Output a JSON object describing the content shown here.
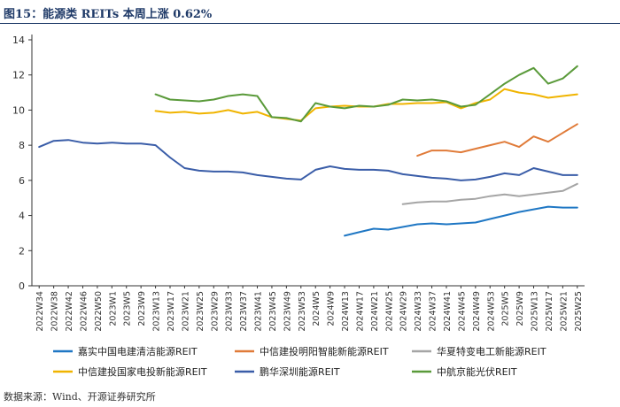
{
  "title": "图15：能源类 REITs 本周上涨 0.62%",
  "source": "数据来源：Wind、开源证券研究所",
  "chart_data": {
    "type": "line",
    "ylim": [
      0,
      14
    ],
    "yticks": [
      0,
      2,
      4,
      6,
      8,
      10,
      12,
      14
    ],
    "grid": false,
    "legend_position": "bottom",
    "x": [
      "2022W34",
      "2022W38",
      "2022W42",
      "2022W46",
      "2022W50",
      "2023W1",
      "2023W5",
      "2023W9",
      "2023W13",
      "2023W17",
      "2023W21",
      "2023W25",
      "2023W29",
      "2023W33",
      "2023W37",
      "2023W41",
      "2023W45",
      "2023W49",
      "2023W53",
      "2024W5",
      "2024W9",
      "2024W13",
      "2024W17",
      "2024W21",
      "2024W25",
      "2024W29",
      "2024W33",
      "2024W37",
      "2024W41",
      "2024W45",
      "2024W49",
      "2024W53",
      "2025W5",
      "2025W9",
      "2025W13",
      "2025W17",
      "2025W21",
      "2025W25"
    ],
    "series": [
      {
        "name": "嘉实中国电建清洁能源REIT",
        "color": "#1f77c4",
        "values": [
          null,
          null,
          null,
          null,
          null,
          null,
          null,
          null,
          null,
          null,
          null,
          null,
          null,
          null,
          null,
          null,
          null,
          null,
          null,
          null,
          null,
          2.85,
          3.05,
          3.25,
          3.2,
          3.35,
          3.5,
          3.55,
          3.5,
          3.55,
          3.6,
          3.8,
          4.0,
          4.2,
          4.35,
          4.5,
          4.45,
          4.45
        ]
      },
      {
        "name": "中信建投明阳智能新能源REIT",
        "color": "#e07b39",
        "values": [
          null,
          null,
          null,
          null,
          null,
          null,
          null,
          null,
          null,
          null,
          null,
          null,
          null,
          null,
          null,
          null,
          null,
          null,
          null,
          null,
          null,
          null,
          null,
          null,
          null,
          null,
          7.4,
          7.7,
          7.7,
          7.6,
          7.8,
          8.0,
          8.2,
          7.9,
          8.5,
          8.2,
          8.7,
          9.2
        ]
      },
      {
        "name": "华夏特变电工新能源REIT",
        "color": "#a5a5a5",
        "values": [
          null,
          null,
          null,
          null,
          null,
          null,
          null,
          null,
          null,
          null,
          null,
          null,
          null,
          null,
          null,
          null,
          null,
          null,
          null,
          null,
          null,
          null,
          null,
          null,
          null,
          4.65,
          4.75,
          4.8,
          4.8,
          4.9,
          4.95,
          5.1,
          5.2,
          5.1,
          5.2,
          5.3,
          5.4,
          5.8
        ]
      },
      {
        "name": "中信建投国家电投新能源REIT",
        "color": "#f0b400",
        "values": [
          null,
          null,
          null,
          null,
          null,
          null,
          null,
          null,
          9.95,
          9.85,
          9.9,
          9.8,
          9.85,
          10.0,
          9.8,
          9.9,
          9.6,
          9.5,
          9.4,
          10.1,
          10.2,
          10.25,
          10.2,
          10.2,
          10.35,
          10.35,
          10.4,
          10.4,
          10.45,
          10.1,
          10.4,
          10.6,
          11.2,
          11.0,
          10.9,
          10.7,
          10.8,
          10.9
        ]
      },
      {
        "name": "鹏华深圳能源REIT",
        "color": "#3a5da8",
        "values": [
          7.9,
          8.25,
          8.3,
          8.15,
          8.1,
          8.15,
          8.1,
          8.1,
          8.0,
          7.3,
          6.7,
          6.55,
          6.5,
          6.5,
          6.45,
          6.3,
          6.2,
          6.1,
          6.05,
          6.6,
          6.8,
          6.65,
          6.6,
          6.6,
          6.55,
          6.35,
          6.25,
          6.15,
          6.1,
          6.0,
          6.05,
          6.2,
          6.4,
          6.3,
          6.7,
          6.5,
          6.3,
          6.3
        ]
      },
      {
        "name": "中航京能光伏REIT",
        "color": "#5a9a3a",
        "values": [
          null,
          null,
          null,
          null,
          null,
          null,
          null,
          null,
          10.9,
          10.6,
          10.55,
          10.5,
          10.6,
          10.8,
          10.9,
          10.8,
          9.6,
          9.55,
          9.35,
          10.4,
          10.2,
          10.1,
          10.25,
          10.2,
          10.3,
          10.6,
          10.55,
          10.6,
          10.5,
          10.2,
          10.3,
          10.9,
          11.5,
          12.0,
          12.4,
          11.5,
          11.8,
          12.5
        ]
      }
    ]
  }
}
